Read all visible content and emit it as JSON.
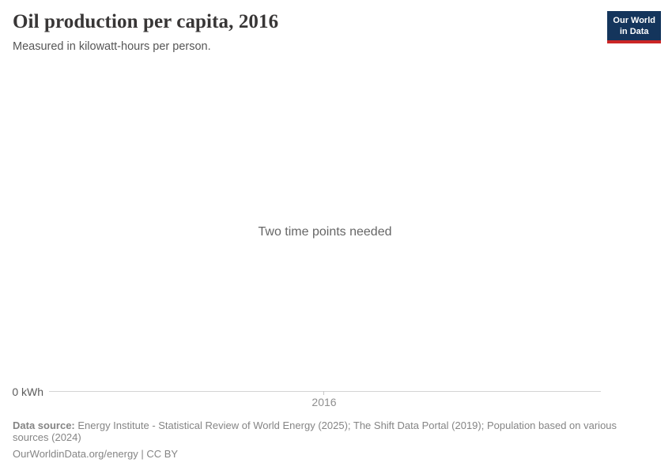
{
  "header": {
    "title": "Oil production per capita, 2016",
    "subtitle": "Measured in kilowatt-hours per person."
  },
  "logo": {
    "line1": "Our World",
    "line2": "in Data",
    "bg_color": "#14355c",
    "accent_color": "#cb2626"
  },
  "chart_data": {
    "type": "line",
    "title": "Oil production per capita, 2016",
    "unit": "kilowatt-hours per person",
    "series": [],
    "empty_message": "Two time points needed",
    "x_ticks": [
      "2016"
    ],
    "y_axis_start_label": "0 kWh",
    "grid": false,
    "legend": false
  },
  "footer": {
    "source_label": "Data source:",
    "source_text": "Energy Institute - Statistical Review of World Energy (2025); The Shift Data Portal (2019); Population based on various sources (2024)",
    "license": "OurWorldinData.org/energy | CC BY"
  },
  "colors": {
    "background": "#ffffff",
    "title_text": "#383636",
    "subtitle_text": "#565656",
    "empty_message_text": "#666666",
    "axis_line": "#d4d4d4",
    "axis_label_text": "#8f8f8f",
    "footer_text": "#858585"
  }
}
